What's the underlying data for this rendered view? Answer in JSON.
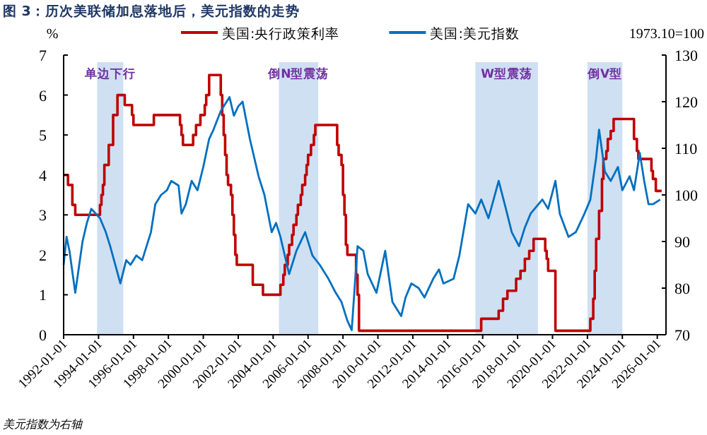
{
  "chart_data": {
    "type": "line",
    "title": "图 3：历次美联储加息落地后，美元指数的走势",
    "ylabel": "%",
    "y2label": "1973.10=100",
    "annotations": [
      "美元指数为右轴"
    ],
    "legend": "top",
    "xlim": [
      "1992-01-01",
      "2026-07-01"
    ],
    "xticks": [
      "1992-01-01",
      "1994-01-01",
      "1996-01-01",
      "1998-01-01",
      "2000-01-01",
      "2002-01-01",
      "2004-01-01",
      "2006-01-01",
      "2008-01-01",
      "2010-01-01",
      "2012-01-01",
      "2014-01-01",
      "2016-01-01",
      "2018-01-01",
      "2020-01-01",
      "2022-01-01",
      "2024-01-01",
      "2026-01-01"
    ],
    "ylim": [
      0,
      7
    ],
    "yticks": [
      0,
      1,
      2,
      3,
      4,
      5,
      6,
      7
    ],
    "y2lim": [
      70,
      130
    ],
    "y2ticks": [
      70,
      80,
      90,
      100,
      110,
      120,
      130
    ],
    "bands": [
      {
        "axis": "x",
        "from": "1993-12",
        "to": "1995-06",
        "label": "单边下行",
        "color": "#cfe0f2"
      },
      {
        "axis": "x",
        "from": "2004-05",
        "to": "2006-08",
        "label": "倒N型震荡",
        "color": "#cfe0f2"
      },
      {
        "axis": "x",
        "from": "2015-08",
        "to": "2019-03",
        "label": "W型震荡",
        "color": "#cfe0f2"
      },
      {
        "axis": "x",
        "from": "2022-01",
        "to": "2024-01",
        "label": "倒V型",
        "color": "#cfe0f2"
      }
    ],
    "series": [
      {
        "name": "美国:央行政策利率",
        "type": "step",
        "color": "#c00000",
        "x": [
          "1992-01",
          "1992-04",
          "1992-07",
          "1992-09",
          "1994-02",
          "1994-03",
          "1994-04",
          "1994-05",
          "1994-08",
          "1994-11",
          "1995-02",
          "1995-07",
          "1995-12",
          "1996-01",
          "1997-03",
          "1998-09",
          "1998-10",
          "1998-11",
          "1999-06",
          "1999-08",
          "1999-11",
          "2000-02",
          "2000-03",
          "2000-05",
          "2001-01",
          "2001-02",
          "2001-03",
          "2001-04",
          "2001-05",
          "2001-06",
          "2001-08",
          "2001-09",
          "2001-10",
          "2001-11",
          "2001-12",
          "2002-11",
          "2003-06",
          "2004-06",
          "2004-08",
          "2004-09",
          "2004-11",
          "2004-12",
          "2005-02",
          "2005-03",
          "2005-05",
          "2005-06",
          "2005-08",
          "2005-09",
          "2005-11",
          "2005-12",
          "2006-01",
          "2006-03",
          "2006-05",
          "2006-06",
          "2007-09",
          "2007-10",
          "2007-12",
          "2008-01",
          "2008-02",
          "2008-03",
          "2008-04",
          "2008-10",
          "2008-11",
          "2008-12",
          "2015-12",
          "2016-12",
          "2017-03",
          "2017-06",
          "2017-12",
          "2018-03",
          "2018-06",
          "2018-09",
          "2018-12",
          "2019-08",
          "2019-09",
          "2019-10",
          "2020-03",
          "2022-03",
          "2022-05",
          "2022-06",
          "2022-07",
          "2022-09",
          "2022-11",
          "2022-12",
          "2023-02",
          "2023-03",
          "2023-05",
          "2023-07",
          "2024-09",
          "2024-11",
          "2024-12",
          "2025-09",
          "2025-10",
          "2025-12",
          "2026-04"
        ],
        "values": [
          4.0,
          3.75,
          3.25,
          3.0,
          3.25,
          3.5,
          3.75,
          4.25,
          4.75,
          5.5,
          6.0,
          5.75,
          5.5,
          5.25,
          5.5,
          5.25,
          5.0,
          4.75,
          5.0,
          5.25,
          5.5,
          5.75,
          6.0,
          6.5,
          6.0,
          5.5,
          5.0,
          4.5,
          4.0,
          3.75,
          3.5,
          3.0,
          2.5,
          2.0,
          1.75,
          1.25,
          1.0,
          1.25,
          1.5,
          1.75,
          2.0,
          2.25,
          2.5,
          2.75,
          3.0,
          3.25,
          3.5,
          3.75,
          4.0,
          4.25,
          4.5,
          4.75,
          5.0,
          5.25,
          4.75,
          4.5,
          4.25,
          3.5,
          3.0,
          2.25,
          2.0,
          1.5,
          1.0,
          0.1,
          0.4,
          0.6,
          0.9,
          1.1,
          1.4,
          1.6,
          1.9,
          2.1,
          2.4,
          2.1,
          1.9,
          1.6,
          0.1,
          0.4,
          0.9,
          1.6,
          2.4,
          3.1,
          3.9,
          4.4,
          4.6,
          4.9,
          5.1,
          5.4,
          4.9,
          4.6,
          4.4,
          4.1,
          3.9,
          3.6,
          3.6
        ]
      },
      {
        "name": "美国:美元指数",
        "color": "#0070c0",
        "axis": "y2",
        "x": [
          "1992-01",
          "1992-03",
          "1992-05",
          "1992-09",
          "1993-02",
          "1993-05",
          "1993-08",
          "1994-02",
          "1994-06",
          "1994-09",
          "1995-04",
          "1995-08",
          "1995-11",
          "1996-03",
          "1996-07",
          "1997-01",
          "1997-04",
          "1997-08",
          "1997-12",
          "1998-03",
          "1998-08",
          "1998-10",
          "1999-01",
          "1999-05",
          "1999-09",
          "2000-01",
          "2000-05",
          "2000-08",
          "2001-01",
          "2001-07",
          "2001-10",
          "2002-01",
          "2002-04",
          "2002-09",
          "2003-03",
          "2003-07",
          "2003-12",
          "2004-03",
          "2004-06",
          "2004-12",
          "2005-05",
          "2005-11",
          "2006-04",
          "2006-09",
          "2007-03",
          "2007-08",
          "2007-12",
          "2008-04",
          "2008-07",
          "2008-11",
          "2009-03",
          "2009-06",
          "2009-12",
          "2010-06",
          "2010-11",
          "2011-05",
          "2011-08",
          "2011-12",
          "2012-05",
          "2012-09",
          "2013-03",
          "2013-07",
          "2013-10",
          "2014-05",
          "2014-09",
          "2015-03",
          "2015-08",
          "2015-12",
          "2016-05",
          "2016-12",
          "2017-05",
          "2017-09",
          "2018-02",
          "2018-06",
          "2018-10",
          "2019-06",
          "2019-10",
          "2020-03",
          "2020-06",
          "2020-12",
          "2021-05",
          "2021-11",
          "2022-03",
          "2022-07",
          "2022-09",
          "2023-01",
          "2023-05",
          "2023-10",
          "2024-01",
          "2024-06",
          "2024-09",
          "2025-01",
          "2025-04",
          "2025-07",
          "2025-10",
          "2026-03"
        ],
        "values": [
          85,
          91,
          88,
          79,
          90,
          94,
          97,
          95,
          92,
          89,
          81,
          86,
          85,
          87,
          86,
          92,
          98,
          100,
          101,
          103,
          102,
          96,
          98,
          103,
          101,
          106,
          112,
          114,
          118,
          121,
          117,
          119,
          120,
          112,
          104,
          100,
          92,
          94,
          91,
          83,
          88,
          92,
          87,
          85,
          82,
          79,
          77,
          73,
          71,
          89,
          88,
          83,
          79,
          88,
          77,
          74,
          78,
          81,
          80,
          78,
          82,
          84,
          81,
          82,
          87,
          98,
          96,
          99,
          95,
          103,
          97,
          92,
          89,
          93,
          96,
          99,
          97,
          103,
          96,
          91,
          92,
          96,
          99,
          108,
          114,
          105,
          103,
          106,
          101,
          104,
          101,
          109,
          103,
          98,
          98,
          99
        ]
      }
    ]
  }
}
